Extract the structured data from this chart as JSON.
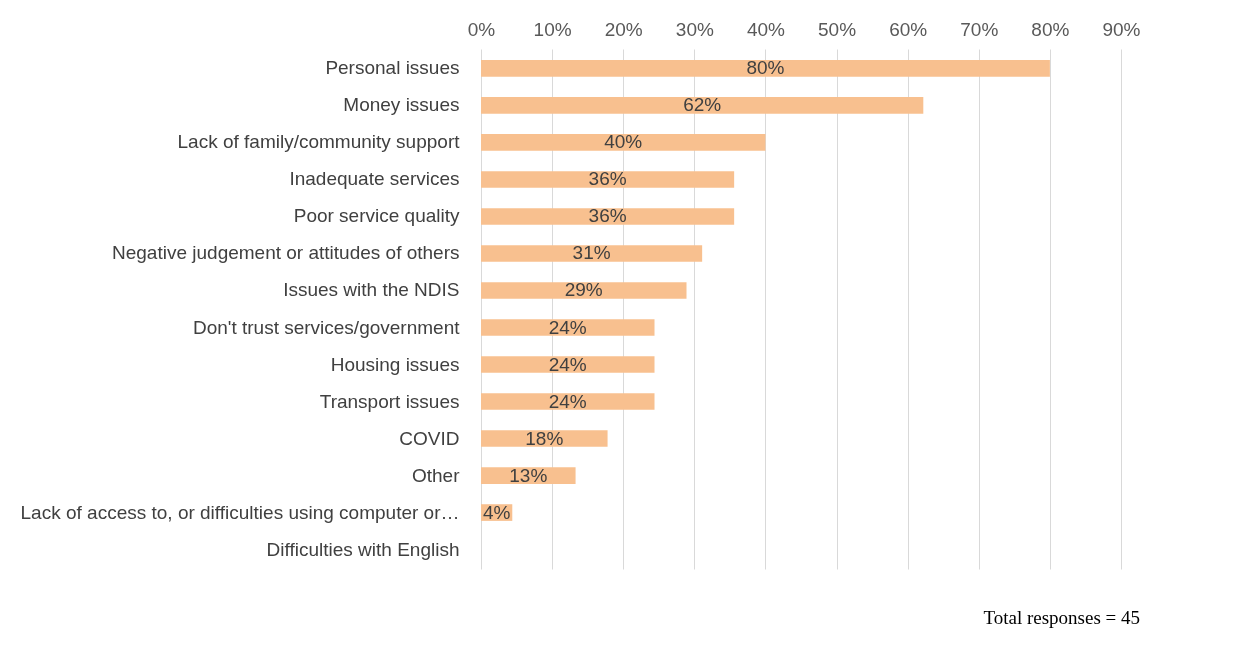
{
  "chart_data": {
    "type": "bar",
    "orientation": "horizontal",
    "categories": [
      "Personal issues",
      "Money issues",
      "Lack of family/community support",
      "Inadequate services",
      "Poor service quality",
      "Negative judgement or attitudes of others",
      "Issues with the NDIS",
      "Don't trust services/government",
      "Housing issues",
      "Transport issues",
      "COVID",
      "Other",
      "Lack of access to, or difficulties using computer or…",
      "Difficulties with English"
    ],
    "values": [
      80,
      62.2,
      40,
      35.6,
      35.6,
      31.1,
      28.9,
      24.4,
      24.4,
      24.4,
      17.8,
      13.3,
      4.4,
      0
    ],
    "value_labels": [
      "80%",
      "62%",
      "40%",
      "36%",
      "36%",
      "31%",
      "29%",
      "24%",
      "24%",
      "24%",
      "18%",
      "13%",
      "4%",
      null
    ],
    "color": "#f8c08f",
    "xlim": [
      0,
      90
    ],
    "xticks": [
      {
        "value": 0,
        "label": "0%"
      },
      {
        "value": 10,
        "label": "10%"
      },
      {
        "value": 20,
        "label": "20%"
      },
      {
        "value": 30,
        "label": "30%"
      },
      {
        "value": 40,
        "label": "40%"
      },
      {
        "value": 50,
        "label": "50%"
      },
      {
        "value": 60,
        "label": "60%"
      },
      {
        "value": 70,
        "label": "70%"
      },
      {
        "value": 80,
        "label": "80%"
      },
      {
        "value": 90,
        "label": "90%"
      }
    ],
    "grid": "x",
    "annotations": [
      "Total responses = 45"
    ]
  }
}
